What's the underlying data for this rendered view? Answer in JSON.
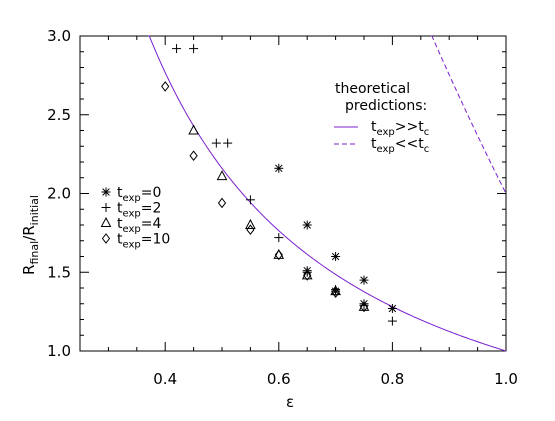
{
  "chart_data": {
    "type": "scatter",
    "title": "",
    "xlabel": "ε",
    "ylabel": {
      "base": "R",
      "sub1": "final",
      "mid": "/R",
      "sub2": "initial"
    },
    "xlim": [
      0.25,
      1.0
    ],
    "ylim": [
      1.0,
      3.0
    ],
    "x_ticks": [
      0.4,
      0.6,
      0.8,
      1.0
    ],
    "x_tick_labels": [
      "0.4",
      "0.6",
      "0.8",
      "1.0"
    ],
    "y_ticks": [
      1.0,
      1.5,
      2.0,
      2.5,
      3.0
    ],
    "y_tick_labels": [
      "1.0",
      "1.5",
      "2.0",
      "2.5",
      "3.0"
    ],
    "grid": false,
    "series": [
      {
        "marker": "asterisk",
        "label_parts": [
          "t",
          "exp",
          "=0"
        ],
        "points": [
          [
            0.6,
            2.16
          ],
          [
            0.65,
            1.8
          ],
          [
            0.7,
            1.6
          ],
          [
            0.75,
            1.45
          ],
          [
            0.8,
            1.27
          ],
          [
            0.65,
            1.51
          ],
          [
            0.75,
            1.3
          ],
          [
            0.7,
            1.38
          ]
        ]
      },
      {
        "marker": "plus",
        "label_parts": [
          "t",
          "exp",
          "=2"
        ],
        "points": [
          [
            0.42,
            2.92
          ],
          [
            0.45,
            2.92
          ],
          [
            0.49,
            2.32
          ],
          [
            0.51,
            2.32
          ],
          [
            0.55,
            1.96
          ],
          [
            0.6,
            1.72
          ],
          [
            0.65,
            1.5
          ],
          [
            0.7,
            1.39
          ],
          [
            0.75,
            1.29
          ],
          [
            0.8,
            1.19
          ]
        ]
      },
      {
        "marker": "triangle",
        "label_parts": [
          "t",
          "exp",
          "=4"
        ],
        "points": [
          [
            0.45,
            2.4
          ],
          [
            0.5,
            2.11
          ],
          [
            0.55,
            1.8
          ],
          [
            0.6,
            1.61
          ],
          [
            0.65,
            1.48
          ],
          [
            0.7,
            1.38
          ],
          [
            0.75,
            1.28
          ]
        ]
      },
      {
        "marker": "diamond",
        "label_parts": [
          "t",
          "exp",
          "=10"
        ],
        "points": [
          [
            0.4,
            2.68
          ],
          [
            0.45,
            2.24
          ],
          [
            0.5,
            1.94
          ],
          [
            0.55,
            1.77
          ],
          [
            0.6,
            1.61
          ],
          [
            0.65,
            1.48
          ],
          [
            0.7,
            1.37
          ],
          [
            0.75,
            1.28
          ]
        ]
      }
    ],
    "curves": [
      {
        "style": "solid",
        "formula": "R = eps^(-1/0.9)",
        "x_range": [
          0.25,
          1.0
        ],
        "color": "#7a1fd0",
        "label_parts": [
          "t",
          "exp",
          ">>t",
          "c",
          ""
        ]
      },
      {
        "style": "dashed",
        "formula": "R = 2 - log10(eps)/log10(1.15)",
        "x_range": [
          0.6,
          1.0
        ],
        "color": "#7a1fd0",
        "label_parts": [
          "t",
          "exp",
          "<<t",
          "c",
          ""
        ]
      }
    ],
    "legend_title": [
      "theoretical",
      "predictions:"
    ],
    "legend_placement": "top-right"
  }
}
